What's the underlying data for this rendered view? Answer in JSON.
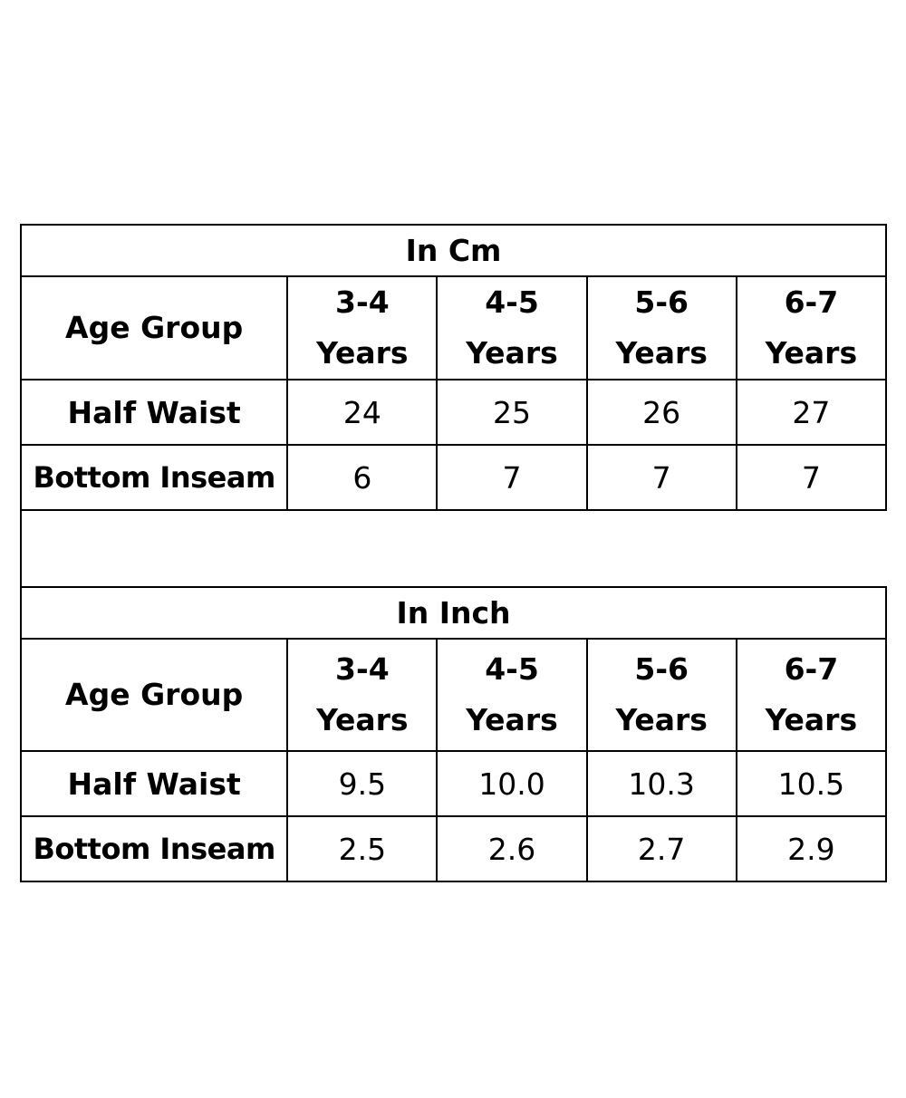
{
  "cm_table": {
    "title": "In Cm",
    "header_label": "Age Group",
    "age_groups": [
      {
        "range": "3-4",
        "unit": "Years"
      },
      {
        "range": "4-5",
        "unit": "Years"
      },
      {
        "range": "5-6",
        "unit": "Years"
      },
      {
        "range": "6-7",
        "unit": "Years"
      }
    ],
    "rows": [
      {
        "label": "Half Waist",
        "values": [
          "24",
          "25",
          "26",
          "27"
        ]
      },
      {
        "label": "Bottom Inseam",
        "values": [
          "6",
          "7",
          "7",
          "7"
        ]
      }
    ]
  },
  "inch_table": {
    "title": "In Inch",
    "header_label": "Age Group",
    "age_groups": [
      {
        "range": "3-4",
        "unit": "Years"
      },
      {
        "range": "4-5",
        "unit": "Years"
      },
      {
        "range": "5-6",
        "unit": "Years"
      },
      {
        "range": "6-7",
        "unit": "Years"
      }
    ],
    "rows": [
      {
        "label": "Half Waist",
        "values": [
          "9.5",
          "10.0",
          "10.3",
          "10.5"
        ]
      },
      {
        "label": "Bottom Inseam",
        "values": [
          "2.5",
          "2.6",
          "2.7",
          "2.9"
        ]
      }
    ]
  },
  "chart_data": [
    {
      "type": "table",
      "title": "In Cm",
      "columns": [
        "Age Group",
        "3-4 Years",
        "4-5 Years",
        "5-6 Years",
        "6-7 Years"
      ],
      "rows": [
        [
          "Half Waist",
          "24",
          "25",
          "26",
          "27"
        ],
        [
          "Bottom Inseam",
          "6",
          "7",
          "7",
          "7"
        ]
      ]
    },
    {
      "type": "table",
      "title": "In Inch",
      "columns": [
        "Age Group",
        "3-4 Years",
        "4-5 Years",
        "5-6 Years",
        "6-7 Years"
      ],
      "rows": [
        [
          "Half Waist",
          "9.5",
          "10.0",
          "10.3",
          "10.5"
        ],
        [
          "Bottom Inseam",
          "2.5",
          "2.6",
          "2.7",
          "2.9"
        ]
      ]
    }
  ]
}
